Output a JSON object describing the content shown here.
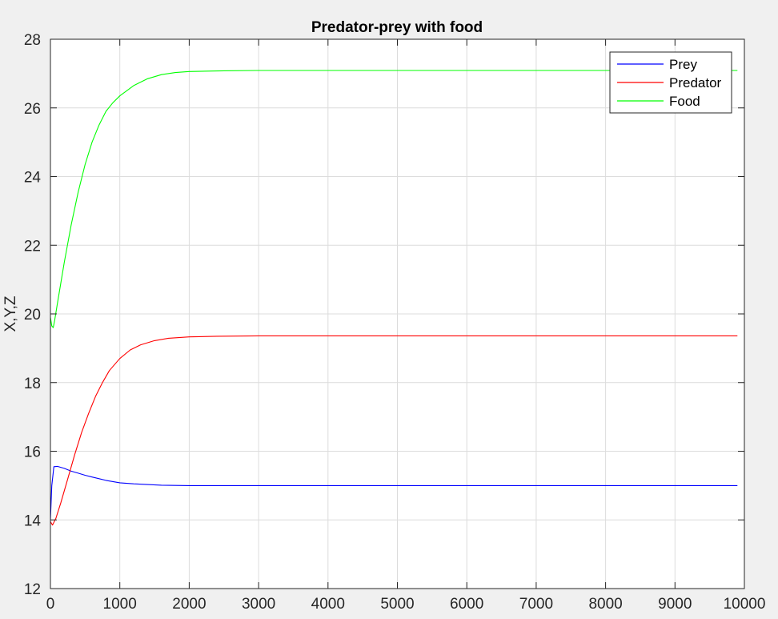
{
  "chart_data": {
    "type": "line",
    "title": "Predator-prey with food",
    "xlabel": "",
    "ylabel": "X,Y,Z",
    "xlim": [
      0,
      10000
    ],
    "ylim": [
      12,
      28
    ],
    "xticks": [
      0,
      1000,
      2000,
      3000,
      4000,
      5000,
      6000,
      7000,
      8000,
      9000,
      10000
    ],
    "xtick_labels": [
      "0",
      "1000",
      "2000",
      "3000",
      "4000",
      "5000",
      "6000",
      "7000",
      "8000",
      "9000",
      "10000"
    ],
    "yticks": [
      12,
      14,
      16,
      18,
      20,
      22,
      24,
      26,
      28
    ],
    "ytick_labels": [
      "12",
      "14",
      "16",
      "18",
      "20",
      "22",
      "24",
      "26",
      "28"
    ],
    "grid": true,
    "legend_position": "top-right",
    "series": [
      {
        "name": "Prey",
        "color": "#0000ff",
        "x": [
          0,
          20,
          50,
          100,
          200,
          300,
          400,
          500,
          600,
          800,
          1000,
          1200,
          1400,
          1600,
          2000,
          2500,
          3000,
          4000,
          6000,
          8000,
          9900
        ],
        "y": [
          14.0,
          15.0,
          15.55,
          15.56,
          15.5,
          15.42,
          15.36,
          15.3,
          15.25,
          15.15,
          15.08,
          15.05,
          15.03,
          15.01,
          15.0,
          15.0,
          15.0,
          15.0,
          15.0,
          15.0,
          15.0
        ]
      },
      {
        "name": "Predator",
        "color": "#ff0000",
        "x": [
          0,
          30,
          80,
          150,
          250,
          350,
          450,
          550,
          650,
          750,
          850,
          1000,
          1150,
          1300,
          1500,
          1700,
          2000,
          2400,
          3000,
          4000,
          6000,
          8000,
          9900
        ],
        "y": [
          13.95,
          13.85,
          14.05,
          14.5,
          15.2,
          15.9,
          16.55,
          17.1,
          17.6,
          18.0,
          18.35,
          18.7,
          18.95,
          19.1,
          19.22,
          19.29,
          19.33,
          19.35,
          19.36,
          19.36,
          19.36,
          19.36,
          19.36
        ]
      },
      {
        "name": "Food",
        "color": "#00ff00",
        "x": [
          0,
          20,
          40,
          60,
          100,
          150,
          200,
          300,
          400,
          500,
          600,
          700,
          800,
          900,
          1000,
          1200,
          1400,
          1600,
          1800,
          2000,
          2500,
          3000,
          4000,
          6000,
          8000,
          9900
        ],
        "y": [
          19.9,
          19.65,
          19.6,
          19.8,
          20.3,
          20.9,
          21.5,
          22.6,
          23.55,
          24.35,
          25.0,
          25.5,
          25.9,
          26.15,
          26.35,
          26.65,
          26.85,
          26.97,
          27.03,
          27.06,
          27.08,
          27.09,
          27.09,
          27.09,
          27.09,
          27.09
        ]
      }
    ]
  }
}
